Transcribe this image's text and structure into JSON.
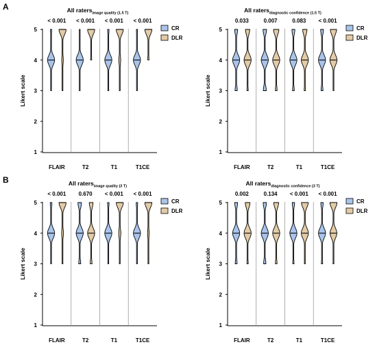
{
  "legend": {
    "items": [
      {
        "label": "CR",
        "color": "#a9c4ea"
      },
      {
        "label": "DLR",
        "color": "#e3cba7"
      }
    ],
    "position": "top-right"
  },
  "colors": {
    "cr_fill": "#a9c4ea",
    "dlr_fill": "#e3cba7",
    "divider": "#9a9a9a"
  },
  "chart_data": [
    {
      "type": "violin",
      "panel": "A",
      "title_main": "All raters",
      "title_sub": "image quality (1.5 T)",
      "ylabel": "Likert scale",
      "xlabel": "",
      "ylim": [
        1,
        5
      ],
      "yticks": [
        "1",
        "2",
        "3",
        "4",
        "5"
      ],
      "categories": [
        "FLAIR",
        "T2",
        "T1",
        "T1CE"
      ],
      "pvalues": [
        "< 0.001",
        "< 0.001",
        "< 0.001",
        "< 0.001"
      ],
      "series": [
        {
          "name": "CR",
          "values": [
            {
              "median": 4,
              "min": 3,
              "max": 5,
              "dist": {
                "3": 0.08,
                "4": 0.78,
                "5": 0.14
              }
            },
            {
              "median": 4,
              "min": 3,
              "max": 5,
              "dist": {
                "3": 0.06,
                "4": 0.84,
                "5": 0.1
              }
            },
            {
              "median": 4,
              "min": 3,
              "max": 5,
              "dist": {
                "3": 0.1,
                "4": 0.75,
                "5": 0.15
              }
            },
            {
              "median": 4,
              "min": 3,
              "max": 5,
              "dist": {
                "3": 0.08,
                "4": 0.8,
                "5": 0.12
              }
            }
          ]
        },
        {
          "name": "DLR",
          "values": [
            {
              "median": 5,
              "min": 3,
              "max": 5,
              "dist": {
                "3": 0.02,
                "4": 0.18,
                "5": 0.8
              }
            },
            {
              "median": 5,
              "min": 4,
              "max": 5,
              "dist": {
                "3": 0.0,
                "4": 0.14,
                "5": 0.86
              }
            },
            {
              "median": 5,
              "min": 3,
              "max": 5,
              "dist": {
                "3": 0.03,
                "4": 0.2,
                "5": 0.77
              }
            },
            {
              "median": 5,
              "min": 4,
              "max": 5,
              "dist": {
                "3": 0.0,
                "4": 0.15,
                "5": 0.85
              }
            }
          ]
        }
      ]
    },
    {
      "type": "violin",
      "panel": "",
      "title_main": "All raters",
      "title_sub": "diagnostic confidence (1.5 T)",
      "ylabel": "Likert scale",
      "xlabel": "",
      "ylim": [
        1,
        5
      ],
      "yticks": [
        "1",
        "2",
        "3",
        "4",
        "5"
      ],
      "categories": [
        "FLAIR",
        "T2",
        "T1",
        "T1CE"
      ],
      "pvalues": [
        "0.033",
        "0.007",
        "0.083",
        "< 0.001"
      ],
      "series": [
        {
          "name": "CR",
          "values": [
            {
              "median": 4,
              "min": 3,
              "max": 5,
              "dist": {
                "3": 0.18,
                "4": 0.58,
                "5": 0.24
              }
            },
            {
              "median": 4,
              "min": 3,
              "max": 5,
              "dist": {
                "3": 0.22,
                "4": 0.52,
                "5": 0.26
              }
            },
            {
              "median": 4,
              "min": 3,
              "max": 5,
              "dist": {
                "3": 0.15,
                "4": 0.6,
                "5": 0.25
              }
            },
            {
              "median": 4,
              "min": 3,
              "max": 5,
              "dist": {
                "3": 0.16,
                "4": 0.6,
                "5": 0.24
              }
            }
          ]
        },
        {
          "name": "DLR",
          "values": [
            {
              "median": 4,
              "min": 3,
              "max": 5,
              "dist": {
                "3": 0.1,
                "4": 0.56,
                "5": 0.34
              }
            },
            {
              "median": 4,
              "min": 3,
              "max": 5,
              "dist": {
                "3": 0.12,
                "4": 0.5,
                "5": 0.38
              }
            },
            {
              "median": 4,
              "min": 3,
              "max": 5,
              "dist": {
                "3": 0.1,
                "4": 0.56,
                "5": 0.34
              }
            },
            {
              "median": 4,
              "min": 3,
              "max": 5,
              "dist": {
                "3": 0.06,
                "4": 0.5,
                "5": 0.44
              }
            }
          ]
        }
      ]
    },
    {
      "type": "violin",
      "panel": "B",
      "title_main": "All raters",
      "title_sub": "image quality (3 T)",
      "ylabel": "Likert scale",
      "xlabel": "",
      "ylim": [
        1,
        5
      ],
      "yticks": [
        "1",
        "2",
        "3",
        "4",
        "5"
      ],
      "categories": [
        "FLAIR",
        "T2",
        "T1",
        "T1CE"
      ],
      "pvalues": [
        "< 0.001",
        "0.670",
        "< 0.001",
        "< 0.001"
      ],
      "series": [
        {
          "name": "CR",
          "values": [
            {
              "median": 4,
              "min": 3,
              "max": 5,
              "dist": {
                "3": 0.08,
                "4": 0.74,
                "5": 0.18
              }
            },
            {
              "median": 4,
              "min": 3,
              "max": 5,
              "dist": {
                "3": 0.16,
                "4": 0.56,
                "5": 0.28
              }
            },
            {
              "median": 4,
              "min": 3,
              "max": 5,
              "dist": {
                "3": 0.08,
                "4": 0.76,
                "5": 0.16
              }
            },
            {
              "median": 4,
              "min": 3,
              "max": 5,
              "dist": {
                "3": 0.06,
                "4": 0.78,
                "5": 0.16
              }
            }
          ]
        },
        {
          "name": "DLR",
          "values": [
            {
              "median": 5,
              "min": 3,
              "max": 5,
              "dist": {
                "3": 0.02,
                "4": 0.2,
                "5": 0.78
              }
            },
            {
              "median": 4,
              "min": 3,
              "max": 5,
              "dist": {
                "3": 0.14,
                "4": 0.56,
                "5": 0.3
              }
            },
            {
              "median": 5,
              "min": 3,
              "max": 5,
              "dist": {
                "3": 0.03,
                "4": 0.22,
                "5": 0.75
              }
            },
            {
              "median": 5,
              "min": 3,
              "max": 5,
              "dist": {
                "3": 0.02,
                "4": 0.18,
                "5": 0.8
              }
            }
          ]
        }
      ]
    },
    {
      "type": "violin",
      "panel": "",
      "title_main": "All raters",
      "title_sub": "diagnostic confidence (3 T)",
      "ylabel": "Likert scale",
      "xlabel": "",
      "ylim": [
        1,
        5
      ],
      "yticks": [
        "1",
        "2",
        "3",
        "4",
        "5"
      ],
      "categories": [
        "FLAIR",
        "T2",
        "T1",
        "T1CE"
      ],
      "pvalues": [
        "0.002",
        "0.134",
        "< 0.001",
        "< 0.001"
      ],
      "series": [
        {
          "name": "CR",
          "values": [
            {
              "median": 4,
              "min": 3,
              "max": 5,
              "dist": {
                "3": 0.16,
                "4": 0.6,
                "5": 0.24
              }
            },
            {
              "median": 4,
              "min": 3,
              "max": 5,
              "dist": {
                "3": 0.18,
                "4": 0.56,
                "5": 0.26
              }
            },
            {
              "median": 4,
              "min": 3,
              "max": 5,
              "dist": {
                "3": 0.12,
                "4": 0.66,
                "5": 0.22
              }
            },
            {
              "median": 4,
              "min": 3,
              "max": 5,
              "dist": {
                "3": 0.12,
                "4": 0.66,
                "5": 0.22
              }
            }
          ]
        },
        {
          "name": "DLR",
          "values": [
            {
              "median": 4,
              "min": 3,
              "max": 5,
              "dist": {
                "3": 0.1,
                "4": 0.54,
                "5": 0.36
              }
            },
            {
              "median": 4,
              "min": 3,
              "max": 5,
              "dist": {
                "3": 0.12,
                "4": 0.52,
                "5": 0.36
              }
            },
            {
              "median": 4,
              "min": 3,
              "max": 5,
              "dist": {
                "3": 0.06,
                "4": 0.48,
                "5": 0.46
              }
            },
            {
              "median": 4,
              "min": 3,
              "max": 5,
              "dist": {
                "3": 0.06,
                "4": 0.46,
                "5": 0.48
              }
            }
          ]
        }
      ]
    }
  ]
}
